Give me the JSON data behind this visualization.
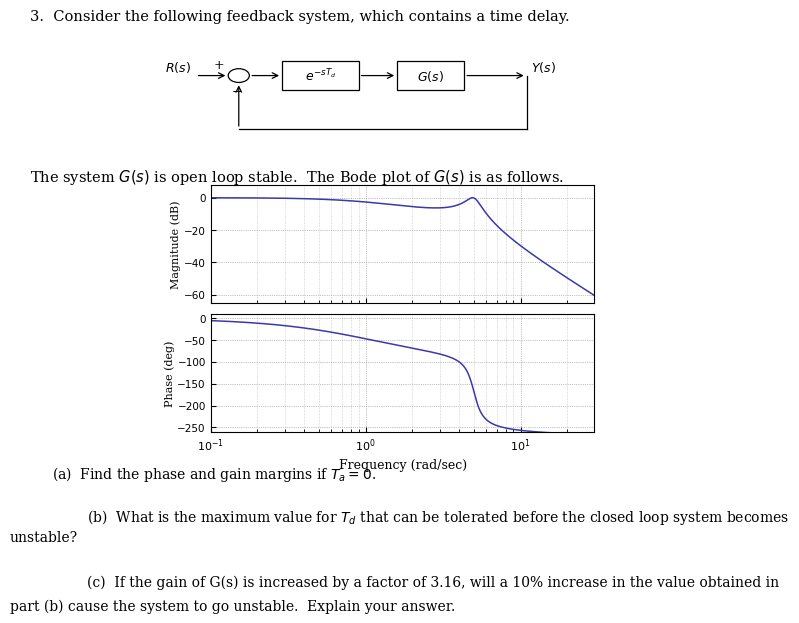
{
  "title": "3.  Consider the following feedback system, which contains a time delay.",
  "subtitle": "The system $G(s)$ is open loop stable.  The Bode plot of $G(s)$ is as follows.",
  "bode": {
    "freq_range": [
      0.1,
      30
    ],
    "mag_ylim": [
      -65,
      8
    ],
    "mag_yticks": [
      0,
      -20,
      -40,
      -60
    ],
    "mag_ylabel": "Magnitude (dB)",
    "phase_ylim": [
      -260,
      10
    ],
    "phase_yticks": [
      0,
      -50,
      -100,
      -150,
      -200,
      -250
    ],
    "phase_ylabel": "Phase (deg)",
    "xlabel": "Frequency (rad/sec)",
    "line_color": "#3a3aaa",
    "bg_color": "#ffffff"
  },
  "q_a": "(a)  Find the phase and gain margins if $T_a = 0$.",
  "q_b_line1": "        (b)  What is the maximum value for $T_d$ that can be tolerated before the closed loop system becomes",
  "q_b_line2": "unstable?",
  "q_c_line1": "        (c)  If the gain of G(s) is increased by a factor of 3.16, will a 10% increase in the value obtained in",
  "q_c_line2": "part (b) cause the system to go unstable.  Explain your answer."
}
